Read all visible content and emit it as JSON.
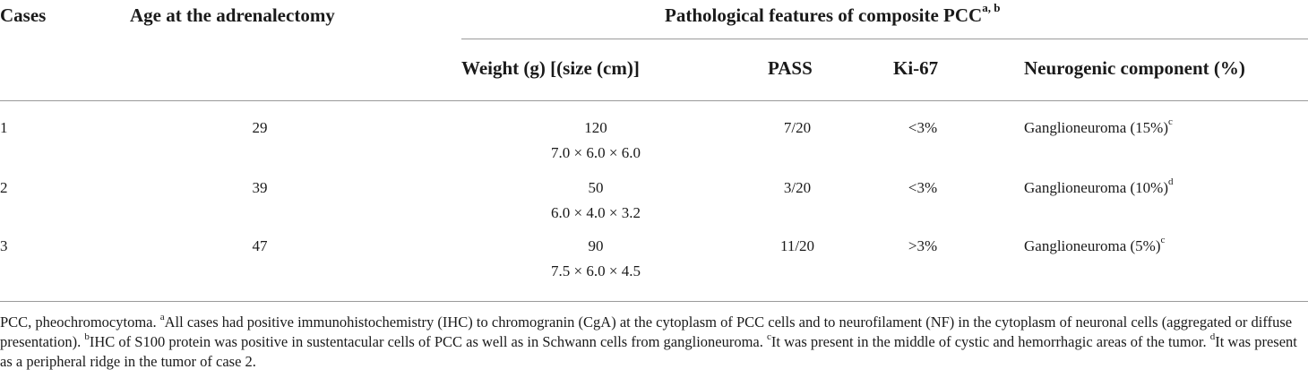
{
  "table": {
    "headers": {
      "cases": "Cases",
      "age": "Age at the adrenalectomy",
      "group": "Pathological features of composite PCC",
      "group_sup": "a, b",
      "weight": "Weight (g) [(size (cm)]",
      "pass": "PASS",
      "ki67": "Ki-67",
      "neurogenic": "Neurogenic component (%)"
    },
    "rows": [
      {
        "case": "1",
        "age": "29",
        "weight": "120",
        "size": "7.0 × 6.0 × 6.0",
        "pass": "7/20",
        "ki67": "<3%",
        "neurogenic": "Ganglioneuroma (15%)",
        "sup": "c"
      },
      {
        "case": "2",
        "age": "39",
        "weight": "50",
        "size": "6.0 × 4.0 × 3.2",
        "pass": "3/20",
        "ki67": "<3%",
        "neurogenic": "Ganglioneuroma (10%)",
        "sup": "d"
      },
      {
        "case": "3",
        "age": "47",
        "weight": "90",
        "size": "7.5 × 6.0 × 4.5",
        "pass": "11/20",
        "ki67": ">3%",
        "neurogenic": "Ganglioneuroma (5%)",
        "sup": "c"
      }
    ]
  },
  "footnote": {
    "intro": "PCC, pheochromocytoma. ",
    "a_sup": "a",
    "a_text": "All cases had positive immunohistochemistry (IHC) to chromogranin (CgA) at the cytoplasm of PCC cells and to neurofilament (NF) in the cytoplasm of neuronal cells (aggregated or diffuse presentation). ",
    "b_sup": "b",
    "b_text": "IHC of S100 protein was positive in sustentacular cells of PCC as well as in Schwann cells from ganglioneuroma. ",
    "c_sup": "c",
    "c_text": "It was present in the middle of cystic and hemorrhagic areas of the tumor. ",
    "d_sup": "d",
    "d_text": "It was present as a peripheral ridge in the tumor of case 2."
  }
}
